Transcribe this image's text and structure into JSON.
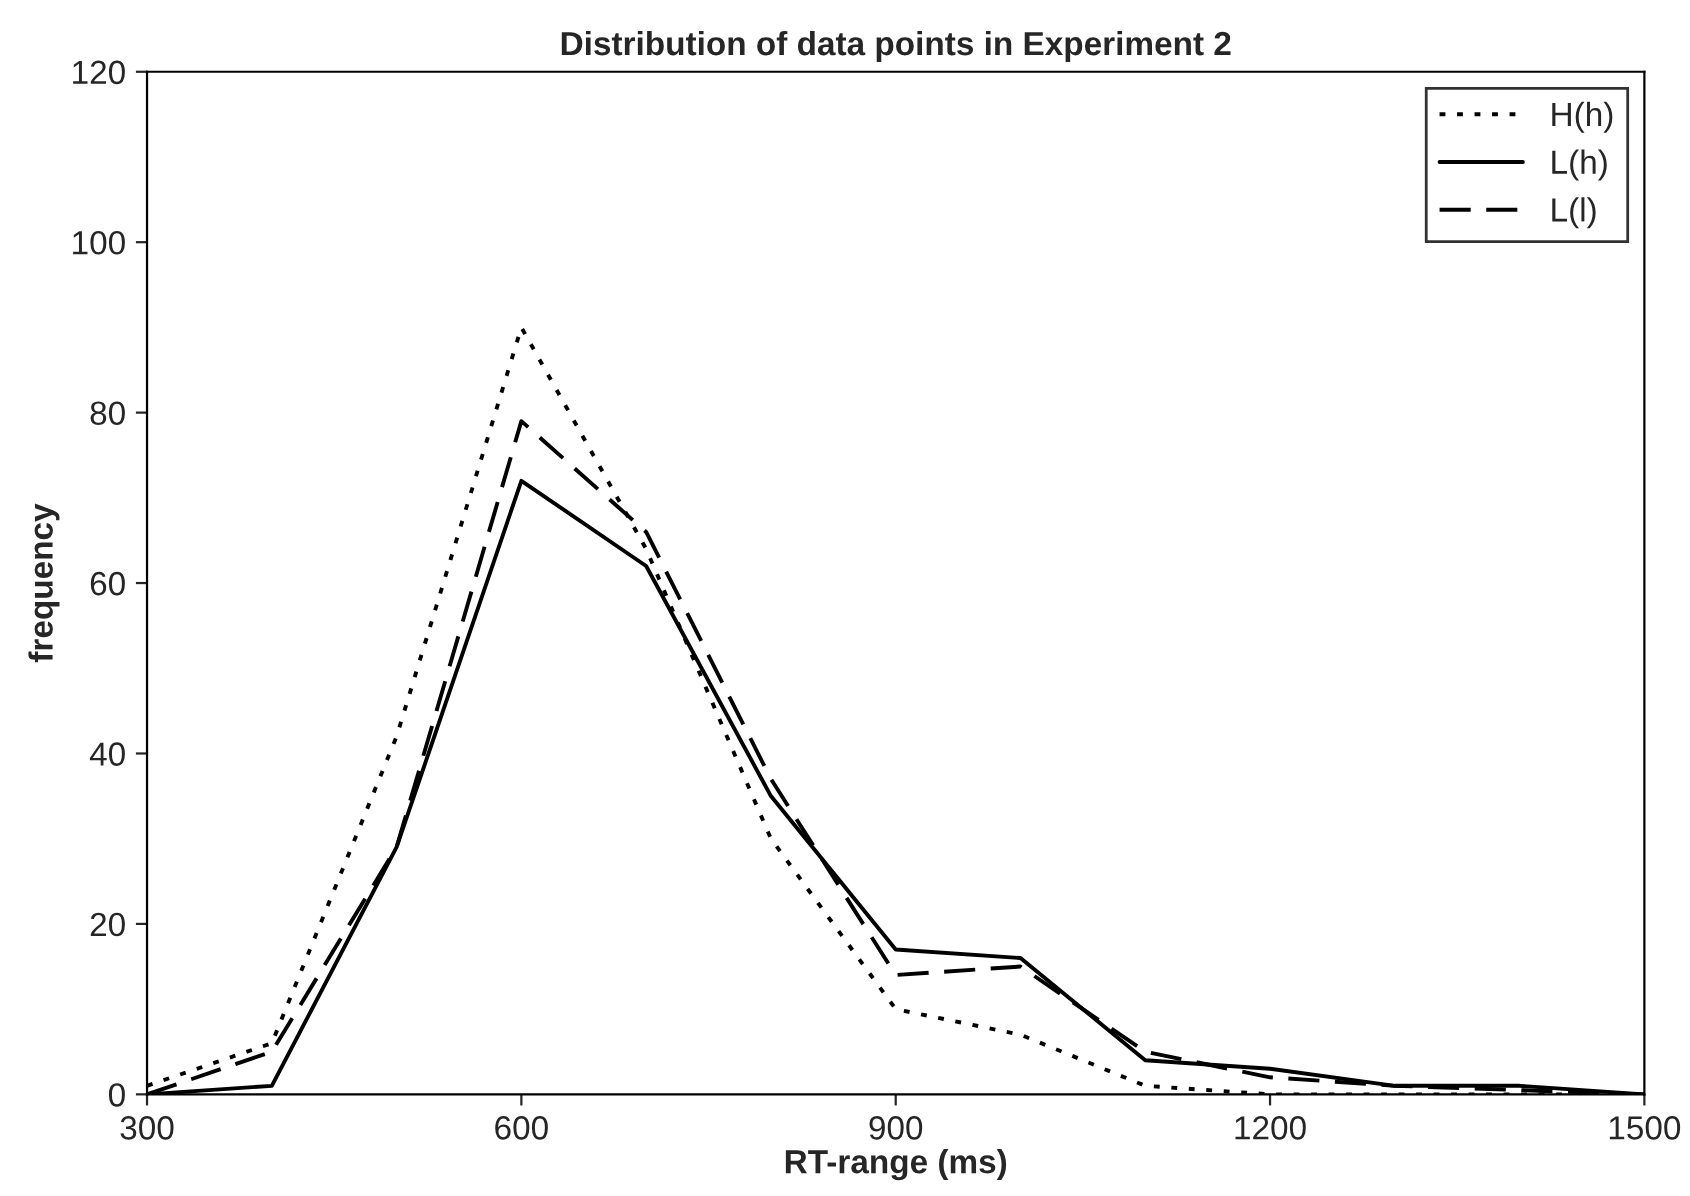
{
  "chart_data": {
    "type": "line",
    "title": "Distribution of data points in Experiment 2",
    "xlabel": "RT-range (ms)",
    "ylabel": "frequency",
    "x": [
      300,
      400,
      500,
      600,
      700,
      800,
      900,
      1000,
      1100,
      1200,
      1300,
      1400,
      1500
    ],
    "series": [
      {
        "name": "H(h)",
        "color": "#000000",
        "line_style": "dotted",
        "values": [
          1,
          6,
          42,
          90,
          64,
          30,
          10,
          7,
          1,
          0,
          0,
          0,
          0
        ]
      },
      {
        "name": "L(h)",
        "color": "#000000",
        "line_style": "solid",
        "values": [
          0,
          1,
          29,
          72,
          62,
          35,
          17,
          16,
          4,
          3,
          1,
          1,
          0
        ]
      },
      {
        "name": "L(l)",
        "color": "#000000",
        "line_style": "dashed",
        "values": [
          0,
          5,
          29,
          79,
          66,
          37,
          14,
          15,
          5,
          2,
          1,
          0.5,
          0
        ]
      }
    ],
    "xlim": [
      300,
      1500
    ],
    "xticks": [
      300,
      600,
      900,
      1200,
      1500
    ],
    "ylim": [
      0,
      120
    ],
    "yticks": [
      0,
      20,
      40,
      60,
      80,
      100,
      120
    ],
    "grid": false,
    "legend": "top right",
    "marker": "none"
  }
}
